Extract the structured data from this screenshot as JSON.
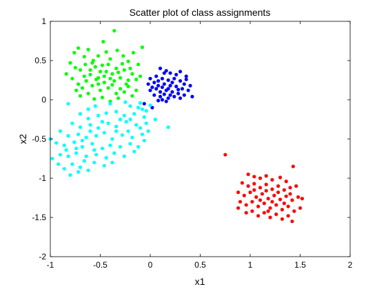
{
  "chart_data": {
    "type": "scatter",
    "title": "Scatter plot of class assignments",
    "xlabel": "x1",
    "ylabel": "x2",
    "xlim": [
      -1,
      2
    ],
    "ylim": [
      -2,
      1
    ],
    "xticks": [
      "-1",
      "-0.5",
      "0",
      "0.5",
      "1",
      "1.5",
      "2"
    ],
    "yticks": [
      "-2",
      "-1.5",
      "-1",
      "-0.5",
      "0",
      "0.5",
      "1"
    ],
    "grid": false,
    "legend": "none",
    "series": [
      {
        "color": "#00ff00",
        "points": [
          [
            -0.76,
            0.6
          ],
          [
            -0.72,
            0.66
          ],
          [
            -0.66,
            0.55
          ],
          [
            -0.62,
            0.64
          ],
          [
            -0.57,
            0.5
          ],
          [
            -0.52,
            0.56
          ],
          [
            -0.47,
            0.74
          ],
          [
            -0.44,
            0.61
          ],
          [
            -0.4,
            0.52
          ],
          [
            -0.36,
            0.88
          ],
          [
            -0.33,
            0.63
          ],
          [
            -0.27,
            0.56
          ],
          [
            -0.22,
            0.49
          ],
          [
            -0.17,
            0.6
          ],
          [
            -0.08,
            0.67
          ],
          [
            -0.8,
            0.47
          ],
          [
            -0.75,
            0.41
          ],
          [
            -0.7,
            0.38
          ],
          [
            -0.65,
            0.45
          ],
          [
            -0.6,
            0.32
          ],
          [
            -0.55,
            0.42
          ],
          [
            -0.5,
            0.36
          ],
          [
            -0.46,
            0.3
          ],
          [
            -0.42,
            0.45
          ],
          [
            -0.38,
            0.33
          ],
          [
            -0.34,
            0.4
          ],
          [
            -0.3,
            0.28
          ],
          [
            -0.26,
            0.38
          ],
          [
            -0.22,
            0.25
          ],
          [
            -0.18,
            0.33
          ],
          [
            -0.14,
            0.26
          ],
          [
            -0.1,
            0.3
          ],
          [
            -0.84,
            0.33
          ],
          [
            -0.78,
            0.27
          ],
          [
            -0.72,
            0.2
          ],
          [
            -0.68,
            0.15
          ],
          [
            -0.64,
            0.24
          ],
          [
            -0.58,
            0.18
          ],
          [
            -0.54,
            0.26
          ],
          [
            -0.5,
            0.12
          ],
          [
            -0.46,
            0.22
          ],
          [
            -0.42,
            0.15
          ],
          [
            -0.38,
            0.19
          ],
          [
            -0.34,
            0.08
          ],
          [
            -0.3,
            0.14
          ],
          [
            -0.26,
            0.1
          ],
          [
            -0.22,
            0.17
          ],
          [
            -0.18,
            0.05
          ],
          [
            -0.14,
            0.12
          ],
          [
            -0.7,
            0.05
          ],
          [
            -0.62,
            0.08
          ],
          [
            -0.56,
            0.01
          ],
          [
            -0.48,
            0.03
          ],
          [
            -0.4,
            -0.02
          ],
          [
            -0.32,
            0.02
          ],
          [
            -0.6,
            0.38
          ],
          [
            -0.52,
            0.28
          ],
          [
            -0.44,
            0.36
          ],
          [
            -0.36,
            0.24
          ],
          [
            -0.28,
            0.46
          ],
          [
            -0.66,
            0.3
          ],
          [
            -0.58,
            0.47
          ],
          [
            -0.48,
            0.44
          ],
          [
            -0.4,
            0.27
          ],
          [
            -0.32,
            0.35
          ],
          [
            -0.24,
            0.2
          ],
          [
            -0.2,
            0.4
          ],
          [
            -0.12,
            0.45
          ],
          [
            -0.74,
            0.12
          ],
          [
            -0.52,
            0.2
          ]
        ]
      },
      {
        "color": "#0000ff",
        "points": [
          [
            0.1,
            0.4
          ],
          [
            0.16,
            0.37
          ],
          [
            0.2,
            0.34
          ],
          [
            0.26,
            0.32
          ],
          [
            0.3,
            0.36
          ],
          [
            0.36,
            0.3
          ],
          [
            0.0,
            0.27
          ],
          [
            0.06,
            0.3
          ],
          [
            0.12,
            0.27
          ],
          [
            0.18,
            0.25
          ],
          [
            0.24,
            0.27
          ],
          [
            0.3,
            0.24
          ],
          [
            0.34,
            0.2
          ],
          [
            0.4,
            0.18
          ],
          [
            -0.02,
            0.2
          ],
          [
            0.04,
            0.22
          ],
          [
            0.08,
            0.18
          ],
          [
            0.14,
            0.2
          ],
          [
            0.2,
            0.18
          ],
          [
            0.26,
            0.17
          ],
          [
            0.32,
            0.14
          ],
          [
            0.38,
            0.12
          ],
          [
            0.0,
            0.12
          ],
          [
            0.06,
            0.14
          ],
          [
            0.1,
            0.1
          ],
          [
            0.16,
            0.12
          ],
          [
            0.22,
            0.1
          ],
          [
            0.28,
            0.08
          ],
          [
            0.34,
            0.06
          ],
          [
            0.04,
            0.06
          ],
          [
            0.1,
            0.04
          ],
          [
            0.14,
            0.07
          ],
          [
            0.18,
            0.02
          ],
          [
            0.24,
            0.04
          ],
          [
            0.3,
            0.02
          ],
          [
            0.08,
            -0.01
          ],
          [
            0.12,
            0.0
          ],
          [
            0.16,
            -0.02
          ],
          [
            0.2,
            0.06
          ],
          [
            0.12,
            0.16
          ],
          [
            0.18,
            0.14
          ],
          [
            0.22,
            0.22
          ],
          [
            0.08,
            0.24
          ],
          [
            0.28,
            0.13
          ],
          [
            0.02,
            0.16
          ],
          [
            0.14,
            0.34
          ],
          [
            -0.06,
            -0.05
          ],
          [
            0.02,
            -0.1
          ],
          [
            0.42,
            0.04
          ],
          [
            0.36,
            0.26
          ]
        ]
      },
      {
        "color": "#00ffff",
        "points": [
          [
            -0.82,
            -0.05
          ],
          [
            -0.62,
            -0.12
          ],
          [
            -0.55,
            -0.08
          ],
          [
            -0.4,
            -0.05
          ],
          [
            -0.25,
            -0.03
          ],
          [
            -0.2,
            -0.08
          ],
          [
            -0.1,
            -0.04
          ],
          [
            -0.08,
            -0.12
          ],
          [
            0.0,
            -0.07
          ],
          [
            -0.7,
            -0.18
          ],
          [
            -0.62,
            -0.24
          ],
          [
            -0.52,
            -0.2
          ],
          [
            -0.44,
            -0.17
          ],
          [
            -0.34,
            -0.15
          ],
          [
            -0.26,
            -0.2
          ],
          [
            -0.16,
            -0.18
          ],
          [
            -0.06,
            -0.22
          ],
          [
            -0.78,
            -0.3
          ],
          [
            -0.7,
            -0.35
          ],
          [
            -0.6,
            -0.32
          ],
          [
            -0.52,
            -0.36
          ],
          [
            -0.42,
            -0.3
          ],
          [
            -0.34,
            -0.34
          ],
          [
            -0.24,
            -0.28
          ],
          [
            -0.14,
            -0.32
          ],
          [
            -0.04,
            -0.3
          ],
          [
            0.05,
            -0.25
          ],
          [
            0.18,
            -0.35
          ],
          [
            -0.9,
            -0.4
          ],
          [
            -0.82,
            -0.46
          ],
          [
            -0.72,
            -0.44
          ],
          [
            -0.64,
            -0.48
          ],
          [
            -0.54,
            -0.46
          ],
          [
            -0.46,
            -0.42
          ],
          [
            -0.38,
            -0.5
          ],
          [
            -0.28,
            -0.45
          ],
          [
            -0.18,
            -0.48
          ],
          [
            -0.08,
            -0.44
          ],
          [
            -0.02,
            -0.4
          ],
          [
            -0.94,
            -0.55
          ],
          [
            -0.86,
            -0.58
          ],
          [
            -0.76,
            -0.54
          ],
          [
            -0.68,
            -0.6
          ],
          [
            -0.58,
            -0.56
          ],
          [
            -0.48,
            -0.62
          ],
          [
            -0.4,
            -0.58
          ],
          [
            -0.3,
            -0.6
          ],
          [
            -0.2,
            -0.56
          ],
          [
            -0.12,
            -0.6
          ],
          [
            -0.06,
            -0.52
          ],
          [
            -1.0,
            -0.5
          ],
          [
            -0.98,
            -0.75
          ],
          [
            -0.9,
            -0.7
          ],
          [
            -0.82,
            -0.72
          ],
          [
            -0.74,
            -0.68
          ],
          [
            -0.64,
            -0.72
          ],
          [
            -0.54,
            -0.7
          ],
          [
            -0.44,
            -0.74
          ],
          [
            -0.36,
            -0.68
          ],
          [
            -0.26,
            -0.72
          ],
          [
            -0.86,
            -0.88
          ],
          [
            -0.78,
            -0.82
          ],
          [
            -0.7,
            -0.86
          ],
          [
            -0.62,
            -0.9
          ],
          [
            -0.56,
            -0.8
          ],
          [
            -0.8,
            -0.96
          ],
          [
            -0.72,
            -0.92
          ],
          [
            -0.66,
            -0.78
          ],
          [
            -0.46,
            -0.84
          ],
          [
            -0.38,
            -0.8
          ],
          [
            -0.92,
            -0.82
          ],
          [
            -0.16,
            -0.66
          ],
          [
            -0.34,
            -0.4
          ],
          [
            -0.6,
            -0.4
          ],
          [
            -0.22,
            -0.4
          ],
          [
            -0.1,
            -0.36
          ],
          [
            -0.48,
            -0.28
          ],
          [
            -0.74,
            -0.62
          ],
          [
            -0.84,
            -0.64
          ],
          [
            -0.3,
            -0.25
          ],
          [
            -0.12,
            -0.1
          ],
          [
            -0.04,
            -0.14
          ],
          [
            -0.56,
            -0.64
          ],
          [
            -0.68,
            -0.52
          ],
          [
            -0.2,
            -0.25
          ]
        ]
      },
      {
        "color": "#ff0000",
        "points": [
          [
            0.75,
            -0.7
          ],
          [
            1.43,
            -0.85
          ],
          [
            0.98,
            -0.95
          ],
          [
            1.04,
            -0.98
          ],
          [
            1.1,
            -1.0
          ],
          [
            1.16,
            -0.97
          ],
          [
            1.22,
            -1.02
          ],
          [
            1.3,
            -0.99
          ],
          [
            1.36,
            -1.04
          ],
          [
            0.92,
            -1.06
          ],
          [
            0.98,
            -1.1
          ],
          [
            1.04,
            -1.07
          ],
          [
            1.1,
            -1.12
          ],
          [
            1.16,
            -1.08
          ],
          [
            1.22,
            -1.14
          ],
          [
            1.28,
            -1.1
          ],
          [
            1.34,
            -1.15
          ],
          [
            1.4,
            -1.12
          ],
          [
            1.46,
            -1.1
          ],
          [
            0.88,
            -1.18
          ],
          [
            0.94,
            -1.22
          ],
          [
            1.0,
            -1.18
          ],
          [
            1.06,
            -1.24
          ],
          [
            1.12,
            -1.2
          ],
          [
            1.18,
            -1.26
          ],
          [
            1.24,
            -1.22
          ],
          [
            1.3,
            -1.27
          ],
          [
            1.36,
            -1.23
          ],
          [
            1.42,
            -1.28
          ],
          [
            1.48,
            -1.24
          ],
          [
            0.9,
            -1.3
          ],
          [
            0.96,
            -1.34
          ],
          [
            1.02,
            -1.3
          ],
          [
            1.08,
            -1.36
          ],
          [
            1.14,
            -1.32
          ],
          [
            1.2,
            -1.38
          ],
          [
            1.26,
            -1.34
          ],
          [
            1.32,
            -1.4
          ],
          [
            1.38,
            -1.36
          ],
          [
            1.44,
            -1.42
          ],
          [
            0.96,
            -1.44
          ],
          [
            1.02,
            -1.42
          ],
          [
            1.08,
            -1.48
          ],
          [
            1.14,
            -1.44
          ],
          [
            1.2,
            -1.5
          ],
          [
            1.26,
            -1.46
          ],
          [
            1.32,
            -1.52
          ],
          [
            1.38,
            -1.48
          ],
          [
            1.42,
            -1.55
          ],
          [
            0.88,
            -1.38
          ],
          [
            1.52,
            -1.26
          ],
          [
            1.5,
            -1.38
          ],
          [
            1.1,
            -1.28
          ],
          [
            1.16,
            -1.16
          ],
          [
            1.28,
            -1.18
          ],
          [
            1.22,
            -1.3
          ],
          [
            1.34,
            -1.32
          ],
          [
            1.04,
            -1.15
          ],
          [
            1.18,
            -1.42
          ],
          [
            1.4,
            -1.2
          ]
        ]
      }
    ]
  }
}
